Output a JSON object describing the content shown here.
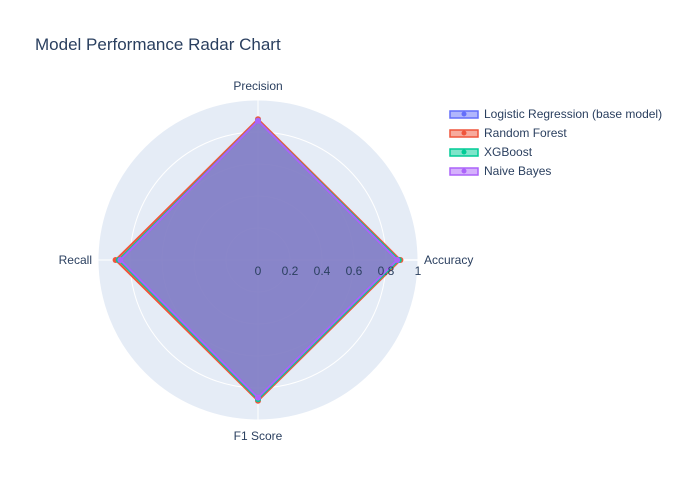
{
  "chart_data": {
    "type": "radar",
    "title": "Model Performance Radar Chart",
    "axes": [
      "Accuracy",
      "Precision",
      "Recall",
      "F1 Score"
    ],
    "radial_range": [
      0,
      1
    ],
    "radial_ticks": [
      "0",
      "0.2",
      "0.4",
      "0.6",
      "0.8",
      "1"
    ],
    "grid": true,
    "legend_position": "top-right",
    "series": [
      {
        "name": "Logistic Regression (base model)",
        "color": "#636efa",
        "values": [
          0.88,
          0.87,
          0.86,
          0.86
        ]
      },
      {
        "name": "Random Forest",
        "color": "#ef553b",
        "values": [
          0.89,
          0.88,
          0.89,
          0.88
        ]
      },
      {
        "name": "XGBoost",
        "color": "#00cc96",
        "values": [
          0.88,
          0.87,
          0.87,
          0.87
        ]
      },
      {
        "name": "Naive Bayes",
        "color": "#ab63fa",
        "values": [
          0.87,
          0.87,
          0.86,
          0.86
        ]
      }
    ]
  }
}
